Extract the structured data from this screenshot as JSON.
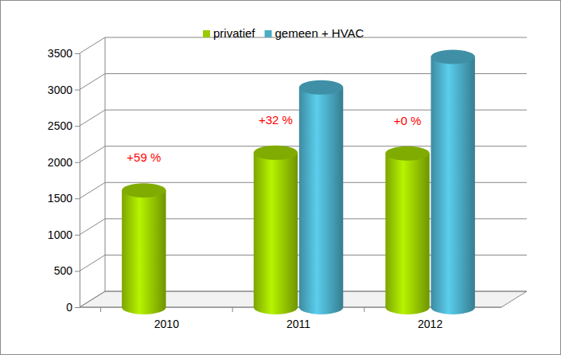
{
  "chart_data": {
    "type": "bar",
    "categories": [
      "2010",
      "2011",
      "2012"
    ],
    "series": [
      {
        "name": "privatief",
        "color": "#99cc00",
        "values": [
          1610,
          2130,
          2120
        ]
      },
      {
        "name": "gemeen + HVAC",
        "color": "#4bacc6",
        "values": [
          null,
          3030,
          3450
        ]
      }
    ],
    "annotations": [
      "+59 %",
      "+32 %",
      "+0 %"
    ],
    "ylim": [
      0,
      3500
    ],
    "yticks": [
      0,
      500,
      1000,
      1500,
      2000,
      2500,
      3000,
      3500
    ],
    "grid": true,
    "legend": "top"
  }
}
